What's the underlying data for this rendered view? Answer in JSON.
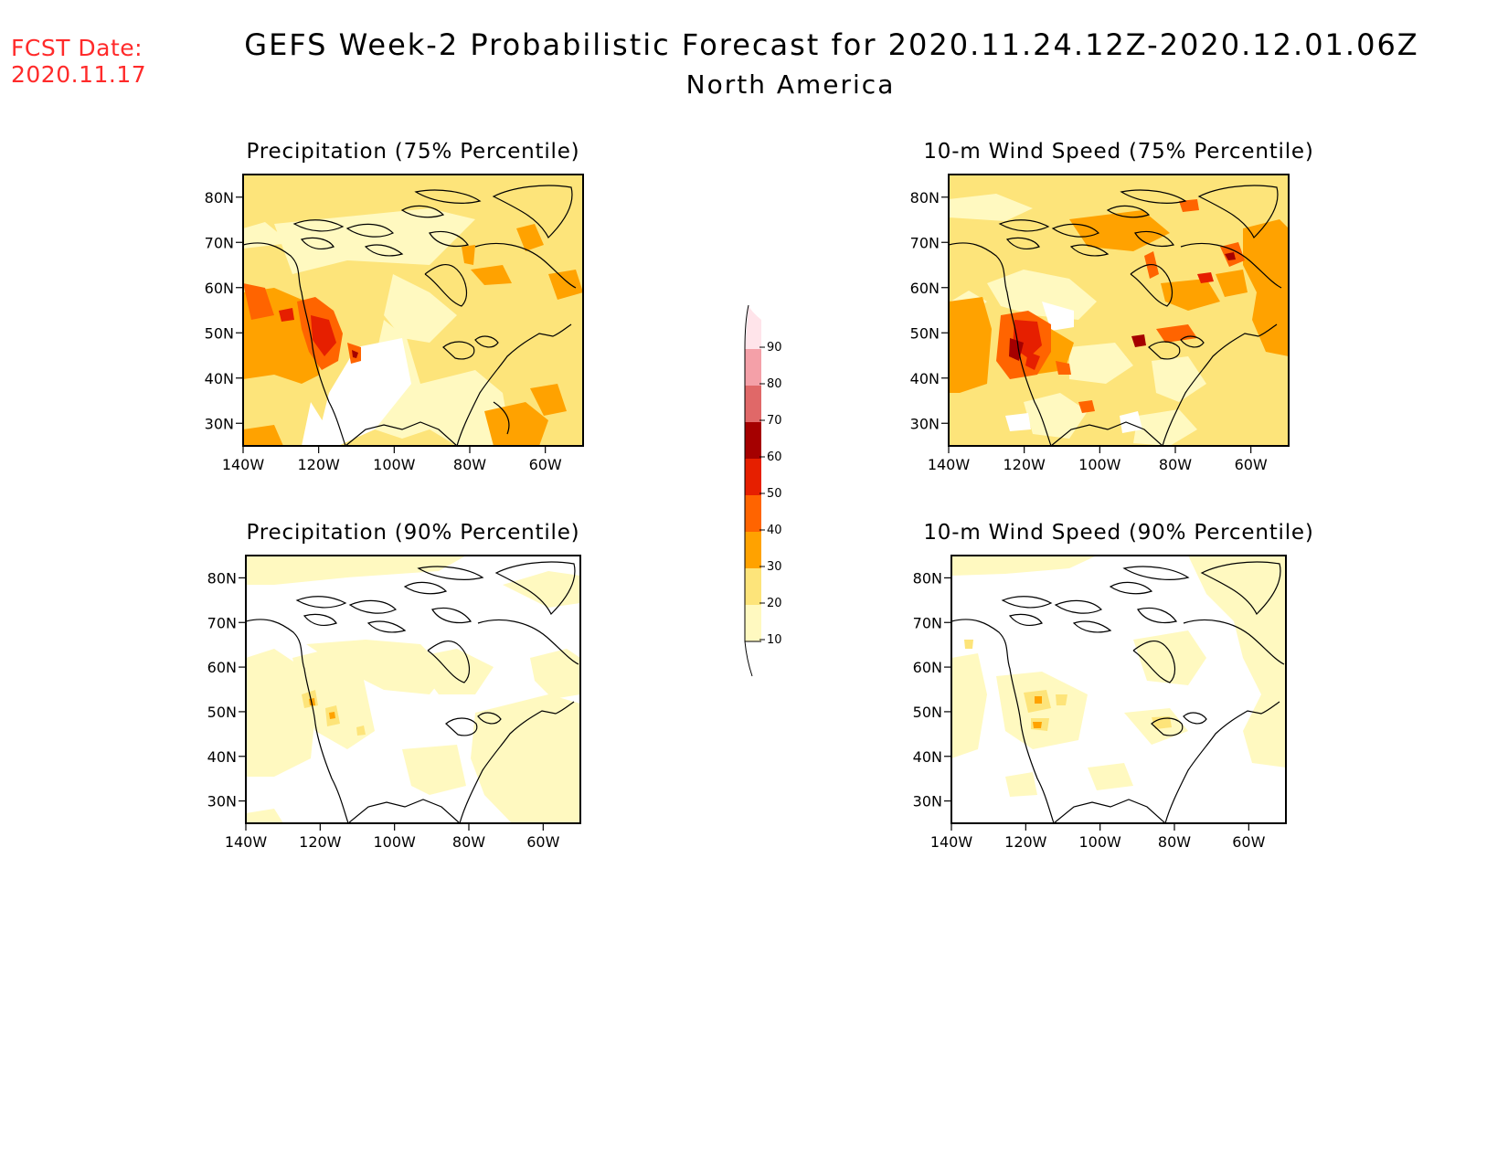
{
  "header": {
    "fcst_label": "FCST Date:",
    "fcst_date": "2020.11.17",
    "title": "GEFS Week-2 Probabilistic Forecast for 2020.11.24.12Z-2020.12.01.06Z",
    "region": "North America"
  },
  "panels": [
    {
      "id": "precip75",
      "title": "Precipitation (75% Percentile)"
    },
    {
      "id": "wind75",
      "title": "10-m Wind Speed (75% Percentile)"
    },
    {
      "id": "precip90",
      "title": "Precipitation (90% Percentile)"
    },
    {
      "id": "wind90",
      "title": "10-m Wind Speed (90% Percentile)"
    }
  ],
  "axes": {
    "lat_labels": [
      "80N",
      "70N",
      "60N",
      "50N",
      "40N",
      "30N"
    ],
    "lon_labels": [
      "140W",
      "120W",
      "100W",
      "80W",
      "60W"
    ],
    "lat_values": [
      80,
      70,
      60,
      50,
      40,
      30
    ],
    "lon_values": [
      -140,
      -120,
      -100,
      -80,
      -60
    ],
    "lon_range": [
      -140,
      -50
    ],
    "lat_range": [
      25,
      85
    ]
  },
  "colorbar": {
    "levels": [
      "10",
      "20",
      "30",
      "40",
      "50",
      "60",
      "70",
      "80",
      "90"
    ],
    "colors": [
      "#fff9c0",
      "#fde47a",
      "#ffa200",
      "#ff6400",
      "#e61f00",
      "#a50000",
      "#e06868",
      "#f4a0a8",
      "#ffe4ea"
    ]
  }
}
